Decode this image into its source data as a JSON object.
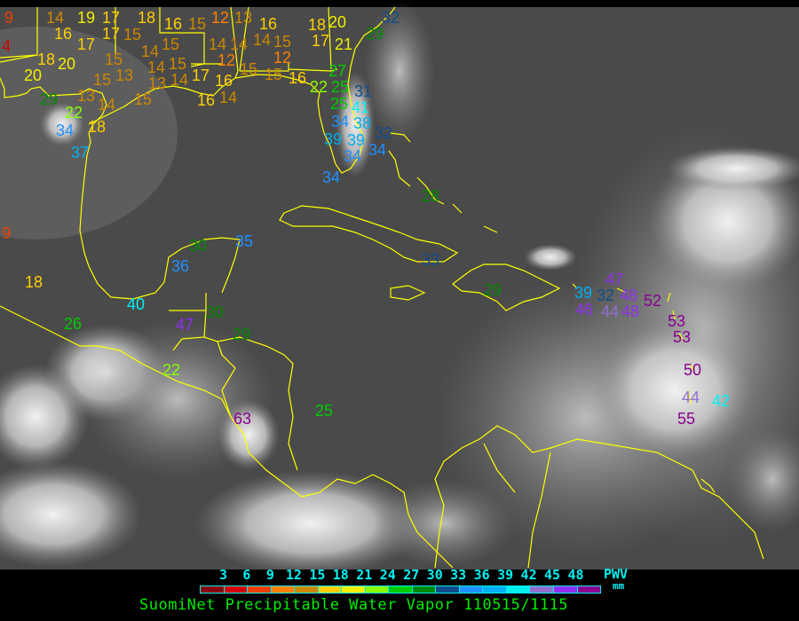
{
  "map": {
    "background": "infrared satellite imagery",
    "coastline_color": "#ffff00",
    "stations": [
      {
        "v": "9"
      },
      {
        "v": "4"
      },
      {
        "v": "14"
      },
      {
        "v": "19"
      },
      {
        "v": "17"
      },
      {
        "v": "18"
      },
      {
        "v": "16"
      },
      {
        "v": "15"
      },
      {
        "v": "12"
      },
      {
        "v": "13"
      },
      {
        "v": "16"
      },
      {
        "v": "18"
      },
      {
        "v": "20"
      },
      {
        "v": "32"
      },
      {
        "v": "16"
      },
      {
        "v": "17"
      },
      {
        "v": "17"
      },
      {
        "v": "15"
      },
      {
        "v": "14"
      },
      {
        "v": "15"
      },
      {
        "v": "14"
      },
      {
        "v": "14"
      },
      {
        "v": "14"
      },
      {
        "v": "15"
      },
      {
        "v": "12"
      },
      {
        "v": "17"
      },
      {
        "v": "21"
      },
      {
        "v": "29"
      },
      {
        "v": "18"
      },
      {
        "v": "20"
      },
      {
        "v": "15"
      },
      {
        "v": "14"
      },
      {
        "v": "15"
      },
      {
        "v": "12"
      },
      {
        "v": "20"
      },
      {
        "v": "13"
      },
      {
        "v": "15"
      },
      {
        "v": "13"
      },
      {
        "v": "14"
      },
      {
        "v": "17"
      },
      {
        "v": "16"
      },
      {
        "v": "14"
      },
      {
        "v": "15"
      },
      {
        "v": "15"
      },
      {
        "v": "16"
      },
      {
        "v": "27"
      },
      {
        "v": "22"
      },
      {
        "v": "25"
      },
      {
        "v": "31"
      },
      {
        "v": "13"
      },
      {
        "v": "14"
      },
      {
        "v": "15"
      },
      {
        "v": "16"
      },
      {
        "v": "29"
      },
      {
        "v": "22"
      },
      {
        "v": "25"
      },
      {
        "v": "41"
      },
      {
        "v": "34"
      },
      {
        "v": "38"
      },
      {
        "v": "18"
      },
      {
        "v": "34"
      },
      {
        "v": "39"
      },
      {
        "v": "32"
      },
      {
        "v": "39"
      },
      {
        "v": "34"
      },
      {
        "v": "34"
      },
      {
        "v": "37"
      },
      {
        "v": "34"
      },
      {
        "v": "28"
      },
      {
        "v": "33"
      },
      {
        "v": "29"
      },
      {
        "v": "30"
      },
      {
        "v": "35"
      },
      {
        "v": "36"
      },
      {
        "v": "18"
      },
      {
        "v": "40"
      },
      {
        "v": "26"
      },
      {
        "v": "47"
      },
      {
        "v": "30"
      },
      {
        "v": "29"
      },
      {
        "v": "22"
      },
      {
        "v": "63"
      },
      {
        "v": "25"
      },
      {
        "v": "9"
      },
      {
        "v": "39"
      },
      {
        "v": "32"
      },
      {
        "v": "46"
      },
      {
        "v": "44"
      },
      {
        "v": "48"
      },
      {
        "v": "47"
      },
      {
        "v": "48"
      },
      {
        "v": "52"
      },
      {
        "v": "53"
      },
      {
        "v": "53"
      },
      {
        "v": "50"
      },
      {
        "v": "44"
      },
      {
        "v": "42"
      },
      {
        "v": "55"
      }
    ]
  },
  "legend": {
    "ticks": [
      "3",
      "6",
      "9",
      "12",
      "15",
      "18",
      "21",
      "24",
      "27",
      "30",
      "33",
      "36",
      "39",
      "42",
      "45",
      "48"
    ],
    "colors": [
      "#8b0000",
      "#d40000",
      "#f04000",
      "#ff8000",
      "#cc8800",
      "#ffd000",
      "#f0f000",
      "#88ff00",
      "#00cc00",
      "#008800",
      "#104c8c",
      "#2090ff",
      "#00b0f0",
      "#00f0f0",
      "#9070d0",
      "#9030f0",
      "#8b0090"
    ],
    "unit_label": "PWV",
    "unit": "mm",
    "title": "SuomiNet Precipitable Water Vapor 110515/1115"
  }
}
